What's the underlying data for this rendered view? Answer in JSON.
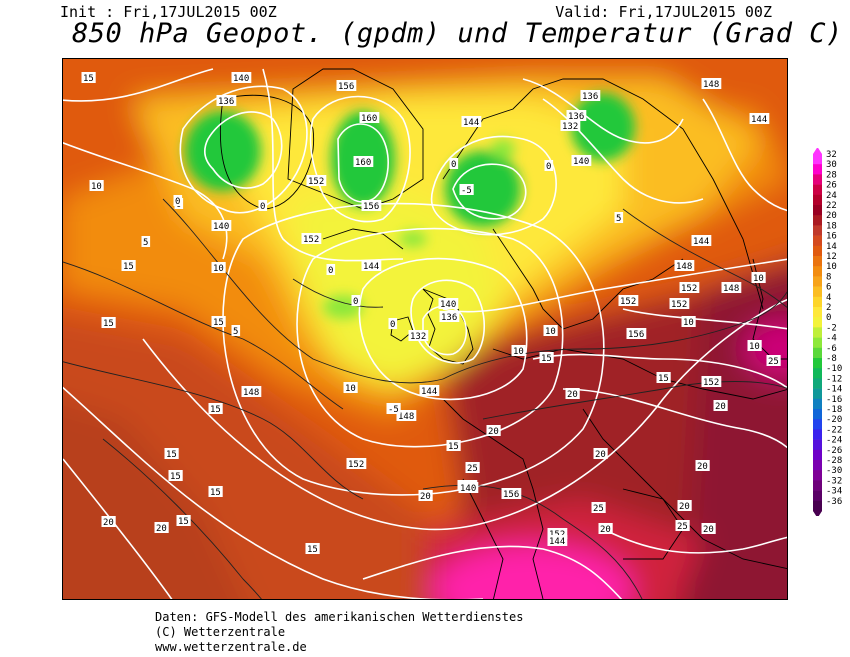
{
  "header": {
    "init": "Init : Fri,17JUL2015 00Z",
    "valid": "Valid: Fri,17JUL2015 00Z",
    "title": "850 hPa Geopot. (gpdm) und Temperatur (Grad C)"
  },
  "legend": {
    "labels": [
      "32",
      "30",
      "28",
      "26",
      "24",
      "22",
      "20",
      "18",
      "16",
      "14",
      "12",
      "10",
      "8",
      "6",
      "4",
      "2",
      "0",
      "-2",
      "-4",
      "-6",
      "-8",
      "-10",
      "-12",
      "-14",
      "-16",
      "-18",
      "-20",
      "-22",
      "-24",
      "-26",
      "-28",
      "-30",
      "-32",
      "-34",
      "-36"
    ],
    "colors": [
      "#ff33ff",
      "#ff00cc",
      "#e6007a",
      "#cc0044",
      "#b3002b",
      "#990022",
      "#aa1a22",
      "#c0392b",
      "#d44a1f",
      "#e05a10",
      "#ea7410",
      "#f28c10",
      "#f7a31a",
      "#fbbd22",
      "#fdd52a",
      "#fee83a",
      "#f3f33a",
      "#bfef3a",
      "#8de83a",
      "#5ad83a",
      "#22c83a",
      "#11b85a",
      "#10a87a",
      "#10989a",
      "#1080c0",
      "#1066d8",
      "#2244ee",
      "#3a22ee",
      "#5511dd",
      "#6e00c8",
      "#7a00b0",
      "#7e0096",
      "#6e007a",
      "#5a0066",
      "#48004f"
    ]
  },
  "map": {
    "geopotential_labels": [
      "140",
      "136",
      "156",
      "152",
      "160",
      "160",
      "156",
      "152",
      "144",
      "136",
      "132",
      "136",
      "140",
      "140",
      "148",
      "144",
      "144",
      "148",
      "152",
      "156",
      "140",
      "136",
      "132",
      "144",
      "148",
      "152",
      "152",
      "148",
      "152",
      "152",
      "156",
      "156",
      "152",
      "140",
      "144",
      "148",
      "144"
    ],
    "temperature_labels": [
      "15",
      "10",
      "15",
      "10",
      "5",
      "0",
      "0",
      "-5",
      "0",
      "10",
      "10",
      "15",
      "15",
      "10",
      "15",
      "10",
      "15",
      "20",
      "20",
      "20",
      "25",
      "20",
      "15",
      "15",
      "15",
      "15",
      "15",
      "20",
      "20",
      "25",
      "20",
      "20",
      "25",
      "20",
      "25",
      "20",
      "20",
      "15",
      "10",
      "10",
      "5",
      "-5",
      "0",
      "0",
      "0",
      "0",
      "0",
      "5",
      "15"
    ]
  },
  "footer": {
    "line1": "Daten: GFS-Modell des amerikanischen Wetterdienstes",
    "line2": "(C) Wetterzentrale",
    "line3": "www.wetterzentrale.de"
  }
}
